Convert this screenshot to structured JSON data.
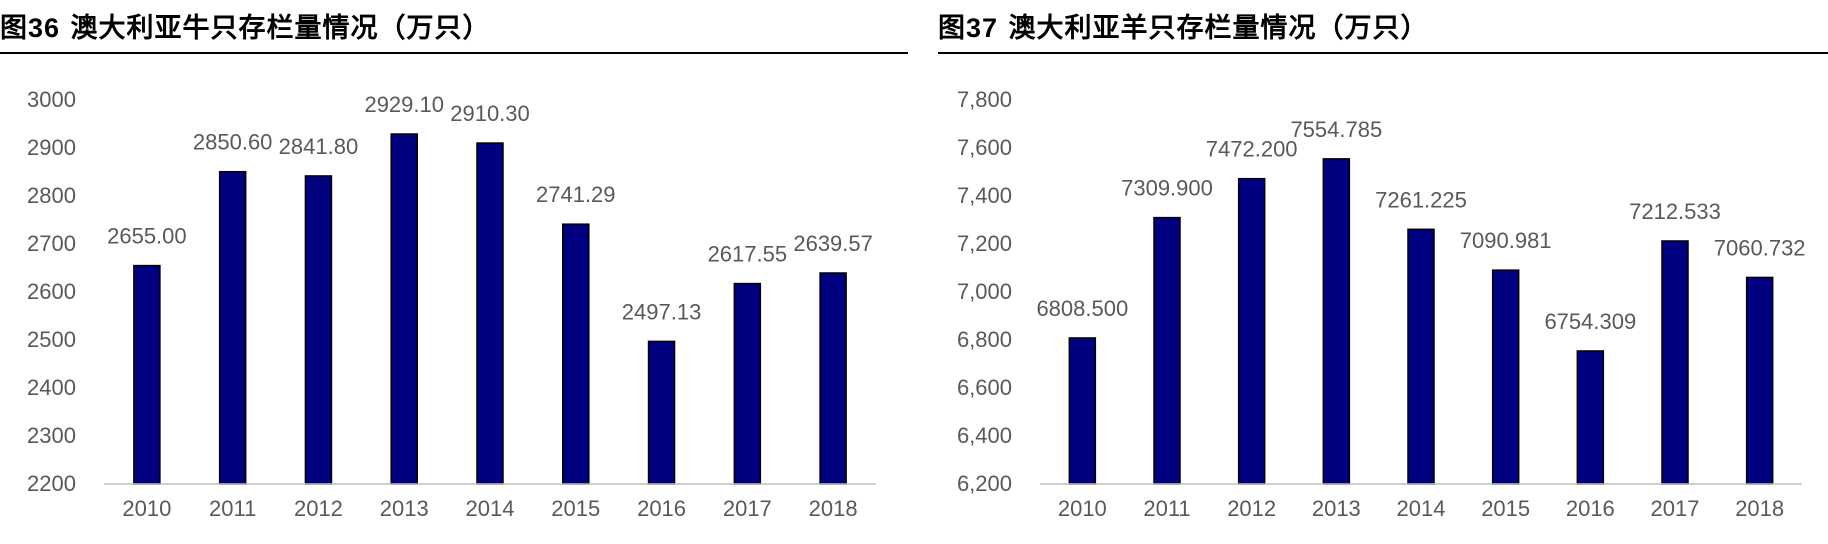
{
  "colors": {
    "bar": "#000080",
    "axis": "#bfbfbf",
    "text": "#595959"
  },
  "figures": [
    {
      "label": "图",
      "number": "36",
      "caption": "澳大利亚牛只存栏量情况（万只）"
    },
    {
      "label": "图",
      "number": "37",
      "caption": "澳大利亚羊只存栏量情况（万只）"
    }
  ],
  "chart_data": [
    {
      "type": "bar",
      "title": "",
      "xlabel": "",
      "ylabel": "",
      "categories": [
        "2010",
        "2011",
        "2012",
        "2013",
        "2014",
        "2015",
        "2016",
        "2017",
        "2018"
      ],
      "values": [
        2655.0,
        2850.6,
        2841.8,
        2929.1,
        2910.3,
        2741.29,
        2497.13,
        2617.55,
        2639.57
      ],
      "data_labels": [
        "2655.00",
        "2850.60",
        "2841.80",
        "2929.10",
        "2910.30",
        "2741.29",
        "2497.13",
        "2617.55",
        "2639.57"
      ],
      "ylim": [
        2200,
        3000
      ],
      "yticks": [
        2200,
        2300,
        2400,
        2500,
        2600,
        2700,
        2800,
        2900,
        3000
      ],
      "ytick_labels": [
        "2200",
        "2300",
        "2400",
        "2500",
        "2600",
        "2700",
        "2800",
        "2900",
        "3000"
      ],
      "grid": false,
      "legend": "none"
    },
    {
      "type": "bar",
      "title": "",
      "xlabel": "",
      "ylabel": "",
      "categories": [
        "2010",
        "2011",
        "2012",
        "2013",
        "2014",
        "2015",
        "2016",
        "2017",
        "2018"
      ],
      "values": [
        6808.5,
        7309.9,
        7472.2,
        7554.785,
        7261.225,
        7090.981,
        6754.309,
        7212.533,
        7060.732
      ],
      "data_labels": [
        "6808.500",
        "7309.900",
        "7472.200",
        "7554.785",
        "7261.225",
        "7090.981",
        "6754.309",
        "7212.533",
        "7060.732"
      ],
      "ylim": [
        6200,
        7800
      ],
      "yticks": [
        6200,
        6400,
        6600,
        6800,
        7000,
        7200,
        7400,
        7600,
        7800
      ],
      "ytick_labels": [
        "6,200",
        "6,400",
        "6,600",
        "6,800",
        "7,000",
        "7,200",
        "7,400",
        "7,600",
        "7,800"
      ],
      "grid": false,
      "legend": "none"
    }
  ]
}
